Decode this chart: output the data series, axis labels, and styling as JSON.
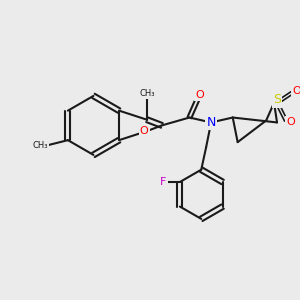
{
  "bg_color": "#ebebeb",
  "bond_color": "#1a1a1a",
  "bond_lw": 1.5,
  "atom_colors": {
    "O": "#ff0000",
    "N": "#0000ff",
    "S": "#cccc00",
    "F": "#cc00cc",
    "C": "#1a1a1a"
  },
  "font_size": 8,
  "font_size_small": 7
}
